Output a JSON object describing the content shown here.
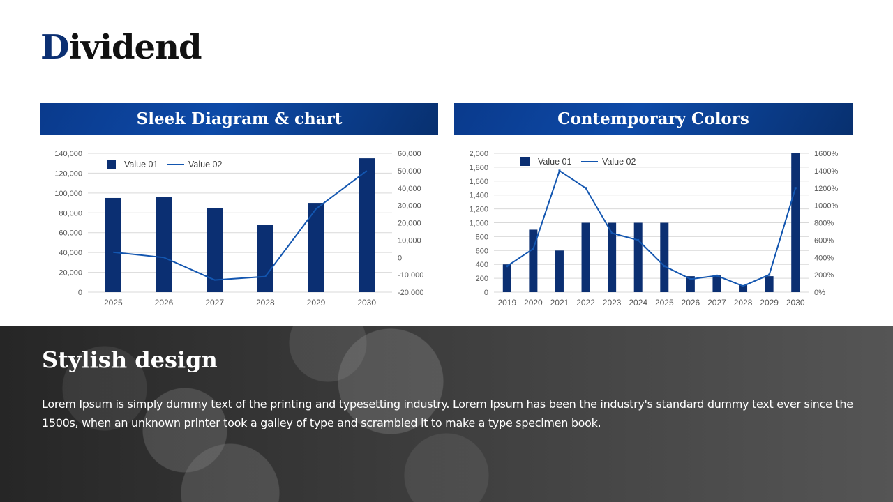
{
  "title": {
    "first_letter": "D",
    "rest": "ividend"
  },
  "panels": [
    {
      "header": "Sleek Diagram & chart"
    },
    {
      "header": "Contemporary Colors"
    }
  ],
  "bottom": {
    "title": "Stylish design",
    "body": "Lorem Ipsum is simply dummy text of the printing and typesetting industry. Lorem Ipsum has been the industry's standard dummy text ever since the 1500s, when an unknown printer took a galley of type and scrambled it to make a type specimen book."
  },
  "colors": {
    "bar": "#0b2f72",
    "line": "#1356b0",
    "grid": "#d9d9d9"
  },
  "chart_data": [
    {
      "type": "bar",
      "categories": [
        "2025",
        "2026",
        "2027",
        "2028",
        "2029",
        "2030"
      ],
      "series": [
        {
          "name": "Value 01",
          "type": "bar",
          "axis": "left",
          "values": [
            95000,
            96000,
            85000,
            68000,
            90000,
            135000
          ]
        },
        {
          "name": "Value 02",
          "type": "line",
          "axis": "right",
          "values": [
            3000,
            0,
            -13000,
            -11000,
            28000,
            50000
          ]
        }
      ],
      "ylim": [
        0,
        140000
      ],
      "yticks": [
        "140,000",
        "120,000",
        "100,000",
        "80,000",
        "60,000",
        "40,000",
        "20,000",
        "0"
      ],
      "y2lim": [
        -20000,
        60000
      ],
      "y2ticks": [
        "60,000",
        "50,000",
        "40,000",
        "30,000",
        "20,000",
        "10,000",
        "0",
        "-10,000",
        "-20,000"
      ],
      "legend": "top-left",
      "grid": true
    },
    {
      "type": "bar",
      "categories": [
        "2019",
        "2020",
        "2021",
        "2022",
        "2023",
        "2024",
        "2025",
        "2026",
        "2027",
        "2028",
        "2029",
        "2030"
      ],
      "series": [
        {
          "name": "Value 01",
          "type": "bar",
          "axis": "left",
          "values": [
            400,
            900,
            600,
            1000,
            1000,
            1000,
            1000,
            230,
            240,
            100,
            230,
            2000
          ]
        },
        {
          "name": "Value 02",
          "type": "line",
          "axis": "right",
          "values": [
            300,
            500,
            1400,
            1200,
            680,
            600,
            300,
            150,
            190,
            70,
            200,
            1200
          ]
        }
      ],
      "ylim": [
        0,
        2000
      ],
      "yticks": [
        "2,000",
        "1,800",
        "1,600",
        "1,400",
        "1,200",
        "1,000",
        "800",
        "600",
        "400",
        "200",
        "0"
      ],
      "y2lim": [
        0,
        1600
      ],
      "y2ticks": [
        "1600%",
        "1400%",
        "1200%",
        "1000%",
        "800%",
        "600%",
        "400%",
        "200%",
        "0%"
      ],
      "legend": "top-left",
      "grid": true
    }
  ]
}
